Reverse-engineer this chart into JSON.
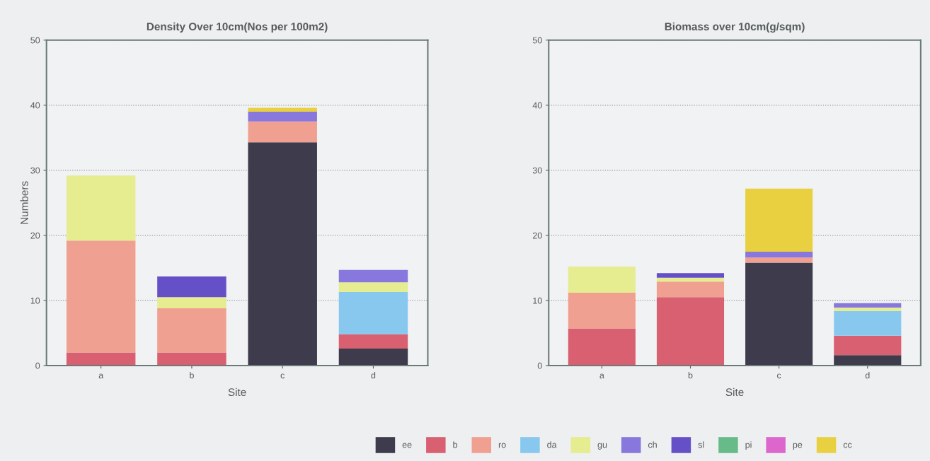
{
  "chart_data": [
    {
      "type": "bar",
      "title": "Density Over 10cm(Nos per 100m2)",
      "xlabel": "Site",
      "ylabel": "Numbers",
      "categories": [
        "a",
        "b",
        "c",
        "d"
      ],
      "stacked": true,
      "ylim": [
        0,
        50
      ],
      "yticks": [
        0,
        10,
        20,
        30,
        40,
        50
      ],
      "grid": "y",
      "legend": "bottom",
      "series": [
        {
          "name": "ee",
          "color": "#3d3b4c",
          "values": [
            null,
            null,
            34.3,
            2.6
          ]
        },
        {
          "name": "b",
          "color": "#d86070",
          "values": [
            2,
            2,
            null,
            2.2
          ]
        },
        {
          "name": "ro",
          "color": "#f0a090",
          "values": [
            17.2,
            6.8,
            3.2,
            null
          ]
        },
        {
          "name": "da",
          "color": "#88c8ee",
          "values": [
            null,
            null,
            null,
            6.5
          ]
        },
        {
          "name": "gu",
          "color": "#e6ec90",
          "values": [
            10,
            1.7,
            null,
            1.5
          ]
        },
        {
          "name": "ch",
          "color": "#8877dd",
          "values": [
            null,
            null,
            1.5,
            1.9
          ]
        },
        {
          "name": "sl",
          "color": "#6650c8",
          "values": [
            null,
            3.2,
            null,
            null
          ]
        },
        {
          "name": "pi",
          "color": "#66bb88",
          "values": [
            null,
            null,
            null,
            null
          ]
        },
        {
          "name": "pe",
          "color": "#dd66cc",
          "values": [
            null,
            null,
            null,
            null
          ]
        },
        {
          "name": "cc",
          "color": "#e8d040",
          "values": [
            null,
            null,
            0.6,
            null
          ]
        }
      ]
    },
    {
      "type": "bar",
      "title": "Biomass over 10cm(g/sqm)",
      "xlabel": "Site",
      "categories": [
        "a",
        "b",
        "c",
        "d"
      ],
      "stacked": true,
      "ylim": [
        0,
        50
      ],
      "yticks": [
        0,
        10,
        20,
        30,
        40,
        50
      ],
      "grid": "y",
      "series": [
        {
          "color": "#3d3b4c",
          "values": [
            null,
            null,
            15.8,
            1.6
          ]
        },
        {
          "color": "#d86070",
          "values": [
            5.7,
            10.5,
            null,
            3
          ]
        },
        {
          "color": "#f0a090",
          "values": [
            5.5,
            2.4,
            0.8,
            null
          ]
        },
        {
          "color": "#88c8ee",
          "values": [
            null,
            null,
            null,
            3.8
          ]
        },
        {
          "color": "#e6ec90",
          "values": [
            4,
            0.6,
            null,
            0.5
          ]
        },
        {
          "color": "#8877dd",
          "values": [
            null,
            null,
            0.9,
            0.7
          ]
        },
        {
          "color": "#6650c8",
          "values": [
            null,
            0.7,
            null,
            null
          ]
        },
        {
          "color": "#e8d040",
          "values": [
            null,
            null,
            9.7,
            null
          ]
        }
      ]
    }
  ]
}
